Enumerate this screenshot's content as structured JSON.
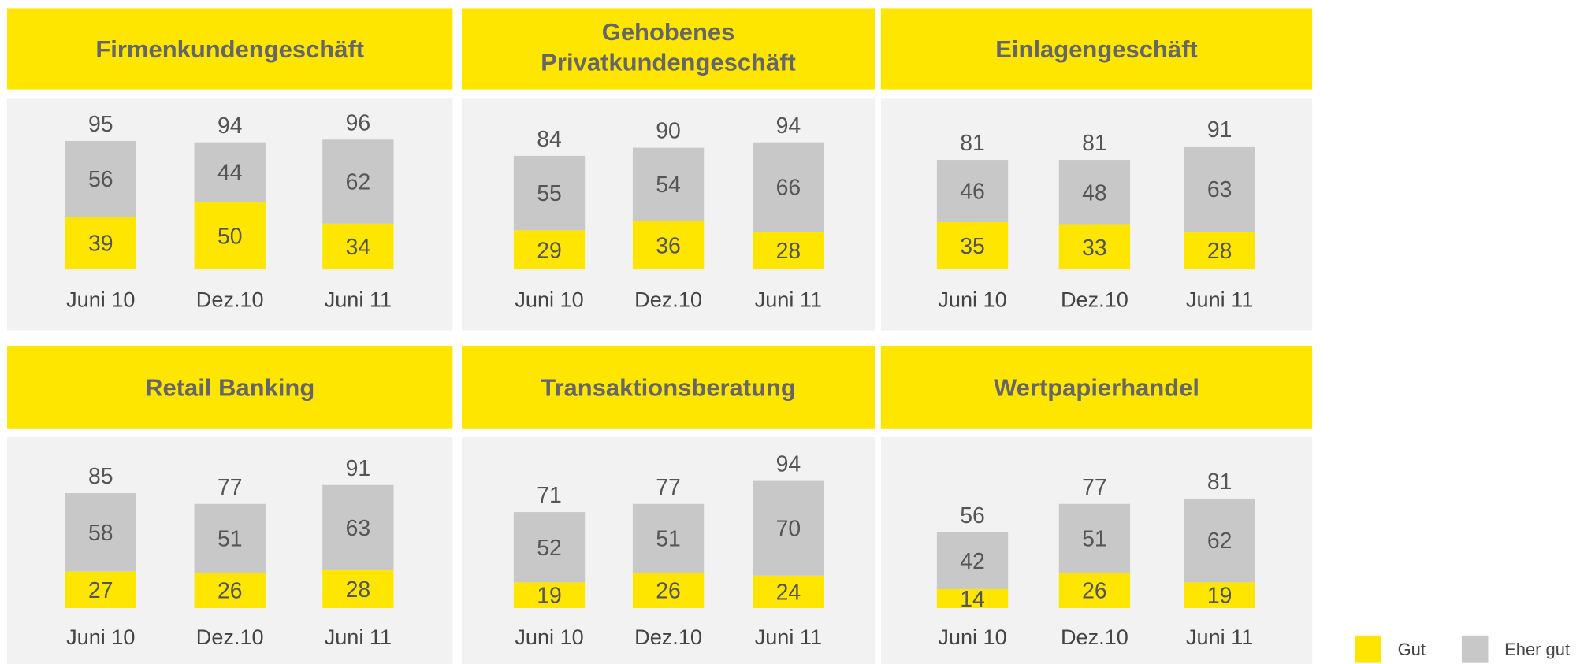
{
  "legend": [
    {
      "name": "Gut",
      "color": "#ffe600"
    },
    {
      "name": "Eher gut",
      "color": "#c8c8c8"
    }
  ],
  "chart_data": [
    {
      "type": "bar",
      "title": "Firmenkundengeschäft",
      "categories": [
        "Juni 10",
        "Dez.10",
        "Juni 11"
      ],
      "series": [
        {
          "values": [
            39,
            50,
            34
          ]
        },
        {
          "values": [
            56,
            44,
            62
          ]
        }
      ],
      "totals": [
        95,
        94,
        96
      ]
    },
    {
      "type": "bar",
      "title": [
        "Gehobenes",
        "Privatkundengeschäft"
      ],
      "categories": [
        "Juni 10",
        "Dez.10",
        "Juni 11"
      ],
      "series": [
        {
          "values": [
            29,
            36,
            28
          ]
        },
        {
          "values": [
            55,
            54,
            66
          ]
        }
      ],
      "totals": [
        84,
        90,
        94
      ]
    },
    {
      "type": "bar",
      "title": "Einlagengeschäft",
      "categories": [
        "Juni 10",
        "Dez.10",
        "Juni 11"
      ],
      "series": [
        {
          "values": [
            35,
            33,
            28
          ]
        },
        {
          "values": [
            46,
            48,
            63
          ]
        }
      ],
      "totals": [
        81,
        81,
        91
      ]
    },
    {
      "type": "bar",
      "title": "Retail Banking",
      "categories": [
        "Juni 10",
        "Dez.10",
        "Juni 11"
      ],
      "series": [
        {
          "values": [
            27,
            26,
            28
          ]
        },
        {
          "values": [
            58,
            51,
            63
          ]
        }
      ],
      "totals": [
        85,
        77,
        91
      ]
    },
    {
      "type": "bar",
      "title": "Transaktionsberatung",
      "categories": [
        "Juni 10",
        "Dez.10",
        "Juni 11"
      ],
      "series": [
        {
          "values": [
            19,
            26,
            24
          ]
        },
        {
          "values": [
            52,
            51,
            70
          ]
        }
      ],
      "totals": [
        71,
        77,
        94
      ]
    },
    {
      "type": "bar",
      "title": "Wertpapierhandel",
      "categories": [
        "Juni 10",
        "Dez.10",
        "Juni 11"
      ],
      "series": [
        {
          "values": [
            14,
            26,
            19
          ]
        },
        {
          "values": [
            42,
            51,
            62
          ]
        }
      ],
      "totals": [
        56,
        77,
        81
      ]
    }
  ]
}
